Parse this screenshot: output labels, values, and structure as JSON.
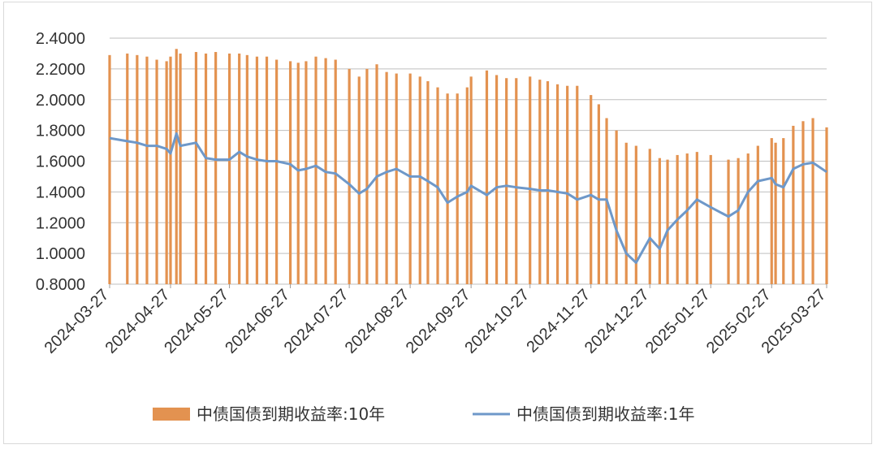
{
  "chart_data": {
    "type": "bar+line",
    "title": "",
    "xlabel": "",
    "ylabel": "",
    "ylim": [
      0.8,
      2.4
    ],
    "yticks": [
      "0.8000",
      "1.0000",
      "1.2000",
      "1.4000",
      "1.6000",
      "1.8000",
      "2.0000",
      "2.2000",
      "2.4000"
    ],
    "ytick_values": [
      0.8,
      1.0,
      1.2,
      1.4,
      1.6,
      1.8,
      2.0,
      2.2,
      2.4
    ],
    "xticks": [
      "2024-03-27",
      "2024-04-27",
      "2024-05-27",
      "2024-06-27",
      "2024-07-27",
      "2024-08-27",
      "2024-09-27",
      "2024-10-27",
      "2024-11-27",
      "2024-12-27",
      "2025-01-27",
      "2025-02-27",
      "2025-03-27"
    ],
    "grid": "horizontal",
    "legend_position": "bottom",
    "colors": {
      "bars": "#E39250",
      "line": "#6E98C9",
      "grid": "#bfbfbf"
    },
    "series": [
      {
        "name": "中债国债到期收益率:10年",
        "kind": "bar",
        "points": [
          [
            "2024-03-27",
            2.29
          ],
          [
            "2024-04-05",
            2.3
          ],
          [
            "2024-04-10",
            2.29
          ],
          [
            "2024-04-15",
            2.28
          ],
          [
            "2024-04-20",
            2.26
          ],
          [
            "2024-04-25",
            2.25
          ],
          [
            "2024-04-27",
            2.28
          ],
          [
            "2024-04-30",
            2.33
          ],
          [
            "2024-05-02",
            2.3
          ],
          [
            "2024-05-10",
            2.31
          ],
          [
            "2024-05-15",
            2.3
          ],
          [
            "2024-05-20",
            2.31
          ],
          [
            "2024-05-27",
            2.3
          ],
          [
            "2024-06-01",
            2.3
          ],
          [
            "2024-06-05",
            2.29
          ],
          [
            "2024-06-10",
            2.28
          ],
          [
            "2024-06-15",
            2.28
          ],
          [
            "2024-06-20",
            2.26
          ],
          [
            "2024-06-27",
            2.25
          ],
          [
            "2024-07-01",
            2.24
          ],
          [
            "2024-07-05",
            2.25
          ],
          [
            "2024-07-10",
            2.28
          ],
          [
            "2024-07-15",
            2.27
          ],
          [
            "2024-07-20",
            2.26
          ],
          [
            "2024-07-27",
            2.2
          ],
          [
            "2024-08-01",
            2.15
          ],
          [
            "2024-08-05",
            2.2
          ],
          [
            "2024-08-10",
            2.23
          ],
          [
            "2024-08-15",
            2.18
          ],
          [
            "2024-08-20",
            2.17
          ],
          [
            "2024-08-27",
            2.17
          ],
          [
            "2024-09-01",
            2.15
          ],
          [
            "2024-09-05",
            2.12
          ],
          [
            "2024-09-10",
            2.08
          ],
          [
            "2024-09-15",
            2.04
          ],
          [
            "2024-09-20",
            2.04
          ],
          [
            "2024-09-25",
            2.08
          ],
          [
            "2024-09-27",
            2.15
          ],
          [
            "2024-10-05",
            2.19
          ],
          [
            "2024-10-10",
            2.16
          ],
          [
            "2024-10-15",
            2.14
          ],
          [
            "2024-10-20",
            2.14
          ],
          [
            "2024-10-27",
            2.15
          ],
          [
            "2024-11-01",
            2.13
          ],
          [
            "2024-11-05",
            2.12
          ],
          [
            "2024-11-10",
            2.1
          ],
          [
            "2024-11-15",
            2.09
          ],
          [
            "2024-11-20",
            2.09
          ],
          [
            "2024-11-27",
            2.03
          ],
          [
            "2024-12-01",
            1.97
          ],
          [
            "2024-12-05",
            1.88
          ],
          [
            "2024-12-10",
            1.8
          ],
          [
            "2024-12-15",
            1.72
          ],
          [
            "2024-12-20",
            1.7
          ],
          [
            "2024-12-27",
            1.68
          ],
          [
            "2025-01-01",
            1.62
          ],
          [
            "2025-01-05",
            1.61
          ],
          [
            "2025-01-10",
            1.64
          ],
          [
            "2025-01-15",
            1.65
          ],
          [
            "2025-01-20",
            1.66
          ],
          [
            "2025-01-27",
            1.64
          ],
          [
            "2025-02-05",
            1.61
          ],
          [
            "2025-02-10",
            1.62
          ],
          [
            "2025-02-15",
            1.65
          ],
          [
            "2025-02-20",
            1.7
          ],
          [
            "2025-02-27",
            1.75
          ],
          [
            "2025-03-01",
            1.72
          ],
          [
            "2025-03-05",
            1.75
          ],
          [
            "2025-03-10",
            1.83
          ],
          [
            "2025-03-15",
            1.86
          ],
          [
            "2025-03-20",
            1.88
          ],
          [
            "2025-03-27",
            1.82
          ]
        ]
      },
      {
        "name": "中债国债到期收益率:1年",
        "kind": "line",
        "points": [
          [
            "2024-03-27",
            1.75
          ],
          [
            "2024-04-05",
            1.73
          ],
          [
            "2024-04-10",
            1.72
          ],
          [
            "2024-04-15",
            1.7
          ],
          [
            "2024-04-20",
            1.7
          ],
          [
            "2024-04-25",
            1.68
          ],
          [
            "2024-04-27",
            1.65
          ],
          [
            "2024-04-30",
            1.78
          ],
          [
            "2024-05-02",
            1.7
          ],
          [
            "2024-05-10",
            1.72
          ],
          [
            "2024-05-15",
            1.62
          ],
          [
            "2024-05-20",
            1.61
          ],
          [
            "2024-05-27",
            1.61
          ],
          [
            "2024-06-01",
            1.66
          ],
          [
            "2024-06-05",
            1.63
          ],
          [
            "2024-06-10",
            1.61
          ],
          [
            "2024-06-15",
            1.6
          ],
          [
            "2024-06-20",
            1.6
          ],
          [
            "2024-06-27",
            1.58
          ],
          [
            "2024-07-01",
            1.54
          ],
          [
            "2024-07-05",
            1.55
          ],
          [
            "2024-07-10",
            1.57
          ],
          [
            "2024-07-15",
            1.53
          ],
          [
            "2024-07-20",
            1.52
          ],
          [
            "2024-07-27",
            1.45
          ],
          [
            "2024-08-01",
            1.39
          ],
          [
            "2024-08-05",
            1.42
          ],
          [
            "2024-08-10",
            1.5
          ],
          [
            "2024-08-15",
            1.53
          ],
          [
            "2024-08-20",
            1.55
          ],
          [
            "2024-08-27",
            1.5
          ],
          [
            "2024-09-01",
            1.5
          ],
          [
            "2024-09-05",
            1.47
          ],
          [
            "2024-09-10",
            1.43
          ],
          [
            "2024-09-15",
            1.33
          ],
          [
            "2024-09-20",
            1.37
          ],
          [
            "2024-09-25",
            1.4
          ],
          [
            "2024-09-27",
            1.44
          ],
          [
            "2024-10-05",
            1.38
          ],
          [
            "2024-10-10",
            1.43
          ],
          [
            "2024-10-15",
            1.44
          ],
          [
            "2024-10-20",
            1.43
          ],
          [
            "2024-10-27",
            1.42
          ],
          [
            "2024-11-01",
            1.41
          ],
          [
            "2024-11-05",
            1.41
          ],
          [
            "2024-11-10",
            1.4
          ],
          [
            "2024-11-15",
            1.39
          ],
          [
            "2024-11-20",
            1.35
          ],
          [
            "2024-11-27",
            1.38
          ],
          [
            "2024-12-01",
            1.35
          ],
          [
            "2024-12-05",
            1.35
          ],
          [
            "2024-12-10",
            1.15
          ],
          [
            "2024-12-15",
            1.0
          ],
          [
            "2024-12-20",
            0.94
          ],
          [
            "2024-12-27",
            1.1
          ],
          [
            "2025-01-01",
            1.03
          ],
          [
            "2025-01-05",
            1.15
          ],
          [
            "2025-01-10",
            1.22
          ],
          [
            "2025-01-15",
            1.28
          ],
          [
            "2025-01-20",
            1.35
          ],
          [
            "2025-01-27",
            1.3
          ],
          [
            "2025-02-05",
            1.24
          ],
          [
            "2025-02-10",
            1.28
          ],
          [
            "2025-02-15",
            1.4
          ],
          [
            "2025-02-20",
            1.47
          ],
          [
            "2025-02-27",
            1.49
          ],
          [
            "2025-03-01",
            1.45
          ],
          [
            "2025-03-05",
            1.43
          ],
          [
            "2025-03-10",
            1.55
          ],
          [
            "2025-03-15",
            1.58
          ],
          [
            "2025-03-20",
            1.59
          ],
          [
            "2025-03-27",
            1.53
          ]
        ]
      }
    ]
  }
}
